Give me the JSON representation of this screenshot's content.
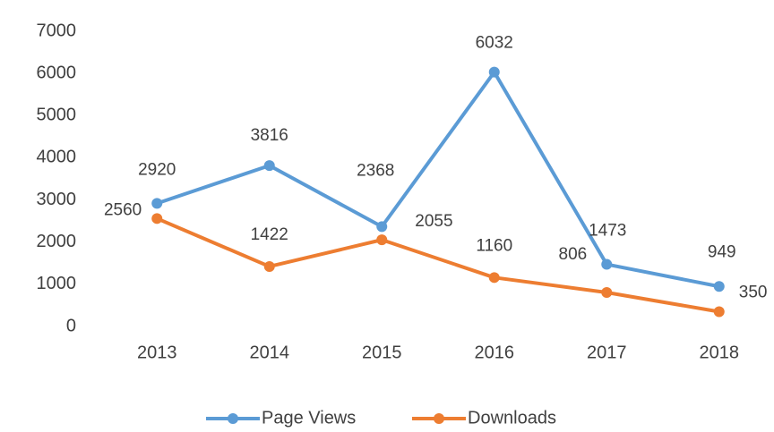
{
  "chart_data": {
    "type": "line",
    "categories": [
      "2013",
      "2014",
      "2015",
      "2016",
      "2017",
      "2018"
    ],
    "series": [
      {
        "name": "Page Views",
        "color": "#5b9bd5",
        "values": [
          2920,
          3816,
          2368,
          6032,
          1473,
          949
        ]
      },
      {
        "name": "Downloads",
        "color": "#ed7d31",
        "values": [
          2560,
          1422,
          2055,
          1160,
          806,
          350
        ]
      }
    ],
    "ylim": [
      0,
      7000
    ],
    "yticks": [
      0,
      1000,
      2000,
      3000,
      4000,
      5000,
      6000,
      7000
    ],
    "grid": false,
    "legend": "bottom"
  }
}
